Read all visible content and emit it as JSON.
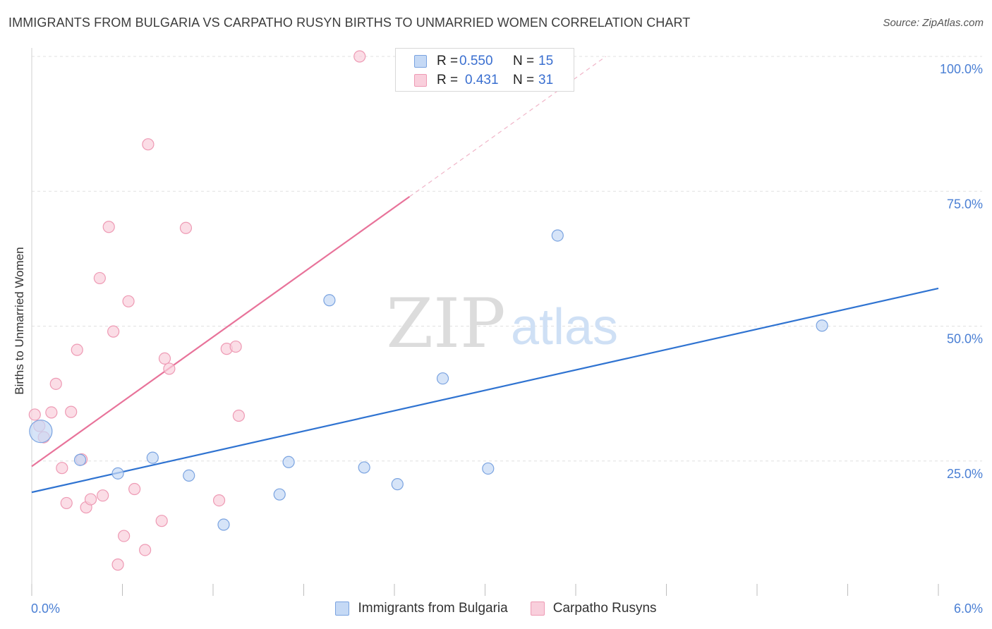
{
  "title": "IMMIGRANTS FROM BULGARIA VS CARPATHO RUSYN BIRTHS TO UNMARRIED WOMEN CORRELATION CHART",
  "source": "Source: ZipAtlas.com",
  "watermark": {
    "zip": "ZIP",
    "atlas": "atlas"
  },
  "legend": {
    "rows": [
      {
        "r_label": "R =",
        "r_value": "0.550",
        "n_label": "N =",
        "n_value": "15"
      },
      {
        "r_label": "R =",
        "r_value": "0.431",
        "n_label": "N =",
        "n_value": "31"
      }
    ]
  },
  "colors": {
    "blue_fill": "#c5d9f5",
    "blue_stroke": "#7aa3e0",
    "blue_line": "#2f73d1",
    "pink_fill": "#f9cfdc",
    "pink_stroke": "#ee9ab4",
    "pink_line": "#e8739a",
    "tick_label": "#4a7fd4",
    "grid": "#e0e0e0"
  },
  "chart_data": {
    "type": "scatter",
    "title": "IMMIGRANTS FROM BULGARIA VS CARPATHO RUSYN BIRTHS TO UNMARRIED WOMEN CORRELATION CHART",
    "xlabel": "",
    "ylabel": "Births to Unmarried Women",
    "xlim": [
      0,
      6
    ],
    "ylim": [
      0,
      100
    ],
    "x_tick_labels": [
      "0.0%",
      "6.0%"
    ],
    "y_ticks": [
      {
        "value": 25,
        "label": "25.0%"
      },
      {
        "value": 50,
        "label": "50.0%"
      },
      {
        "value": 75,
        "label": "75.0%"
      },
      {
        "value": 100,
        "label": "100.0%"
      }
    ],
    "series": [
      {
        "name": "Immigrants from Bulgaria",
        "color": "blue",
        "points": [
          {
            "x": 0.06,
            "y": 30.5,
            "big": true
          },
          {
            "x": 0.32,
            "y": 25.2
          },
          {
            "x": 0.57,
            "y": 22.7
          },
          {
            "x": 0.8,
            "y": 25.6
          },
          {
            "x": 1.04,
            "y": 22.3
          },
          {
            "x": 1.27,
            "y": 13.2
          },
          {
            "x": 1.64,
            "y": 18.8
          },
          {
            "x": 1.7,
            "y": 24.8
          },
          {
            "x": 1.97,
            "y": 54.8
          },
          {
            "x": 2.2,
            "y": 23.8
          },
          {
            "x": 2.42,
            "y": 20.7
          },
          {
            "x": 2.72,
            "y": 40.3
          },
          {
            "x": 3.02,
            "y": 23.6
          },
          {
            "x": 3.48,
            "y": 66.8
          },
          {
            "x": 5.23,
            "y": 50.1
          }
        ],
        "trend": {
          "x0": 0,
          "y0": 19.2,
          "x1": 6,
          "y1": 57.0
        }
      },
      {
        "name": "Carpatho Rusyns",
        "color": "pink",
        "points": [
          {
            "x": 0.02,
            "y": 33.6
          },
          {
            "x": 0.05,
            "y": 31.5
          },
          {
            "x": 0.08,
            "y": 29.4
          },
          {
            "x": 0.13,
            "y": 34.0
          },
          {
            "x": 0.16,
            "y": 39.3
          },
          {
            "x": 0.2,
            "y": 23.7
          },
          {
            "x": 0.23,
            "y": 17.2
          },
          {
            "x": 0.26,
            "y": 34.1
          },
          {
            "x": 0.3,
            "y": 45.6
          },
          {
            "x": 0.33,
            "y": 25.3
          },
          {
            "x": 0.36,
            "y": 16.4
          },
          {
            "x": 0.39,
            "y": 17.9
          },
          {
            "x": 0.45,
            "y": 58.9
          },
          {
            "x": 0.47,
            "y": 18.6
          },
          {
            "x": 0.51,
            "y": 68.4
          },
          {
            "x": 0.54,
            "y": 49.0
          },
          {
            "x": 0.57,
            "y": 5.8
          },
          {
            "x": 0.61,
            "y": 11.1
          },
          {
            "x": 0.64,
            "y": 54.6
          },
          {
            "x": 0.68,
            "y": 19.8
          },
          {
            "x": 0.75,
            "y": 8.5
          },
          {
            "x": 0.77,
            "y": 83.7
          },
          {
            "x": 0.86,
            "y": 13.9
          },
          {
            "x": 0.88,
            "y": 44.0
          },
          {
            "x": 0.91,
            "y": 42.1
          },
          {
            "x": 1.02,
            "y": 68.2
          },
          {
            "x": 1.24,
            "y": 17.7
          },
          {
            "x": 1.29,
            "y": 45.8
          },
          {
            "x": 1.35,
            "y": 46.2
          },
          {
            "x": 1.37,
            "y": 33.4
          },
          {
            "x": 2.17,
            "y": 100.0
          }
        ],
        "trend": {
          "x0": 0,
          "y0": 24.0,
          "x1": 2.5,
          "y1": 74.0
        },
        "trend_extension": {
          "x0": 2.5,
          "y0": 74.0,
          "x1": 3.8,
          "y1": 100.0
        }
      }
    ]
  },
  "bottom_legend": [
    {
      "label": "Immigrants from Bulgaria"
    },
    {
      "label": "Carpatho Rusyns"
    }
  ]
}
